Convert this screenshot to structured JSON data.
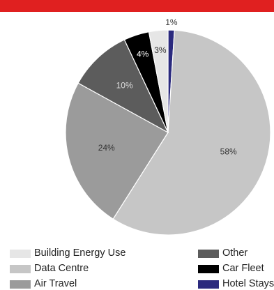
{
  "header": {
    "bar_color": "#e02020"
  },
  "chart_data": {
    "type": "pie",
    "start_angle_deg": 0,
    "direction": "clockwise",
    "slices": [
      {
        "label": "Hotel Stays",
        "value": 1,
        "display": "1%",
        "color": "#2b2a7e",
        "label_color": "#333333",
        "label_outside": true
      },
      {
        "label": "Data Centre",
        "value": 58,
        "display": "58%",
        "color": "#c6c6c6",
        "label_color": "#333333"
      },
      {
        "label": "Air Travel",
        "value": 24,
        "display": "24%",
        "color": "#9b9b9b",
        "label_color": "#333333"
      },
      {
        "label": "Other",
        "value": 10,
        "display": "10%",
        "color": "#5c5c5c",
        "label_color": "#dddddd"
      },
      {
        "label": "Car Fleet",
        "value": 4,
        "display": "4%",
        "color": "#000000",
        "label_color": "#ffffff"
      },
      {
        "label": "Building Energy Use",
        "value": 3,
        "display": "3%",
        "color": "#e6e6e6",
        "label_color": "#333333"
      }
    ],
    "legend": {
      "placement": "bottom",
      "columns": [
        [
          "Building Energy Use",
          "Data Centre",
          "Air Travel"
        ],
        [
          "Other",
          "Car Fleet",
          "Hotel Stays"
        ]
      ]
    }
  }
}
